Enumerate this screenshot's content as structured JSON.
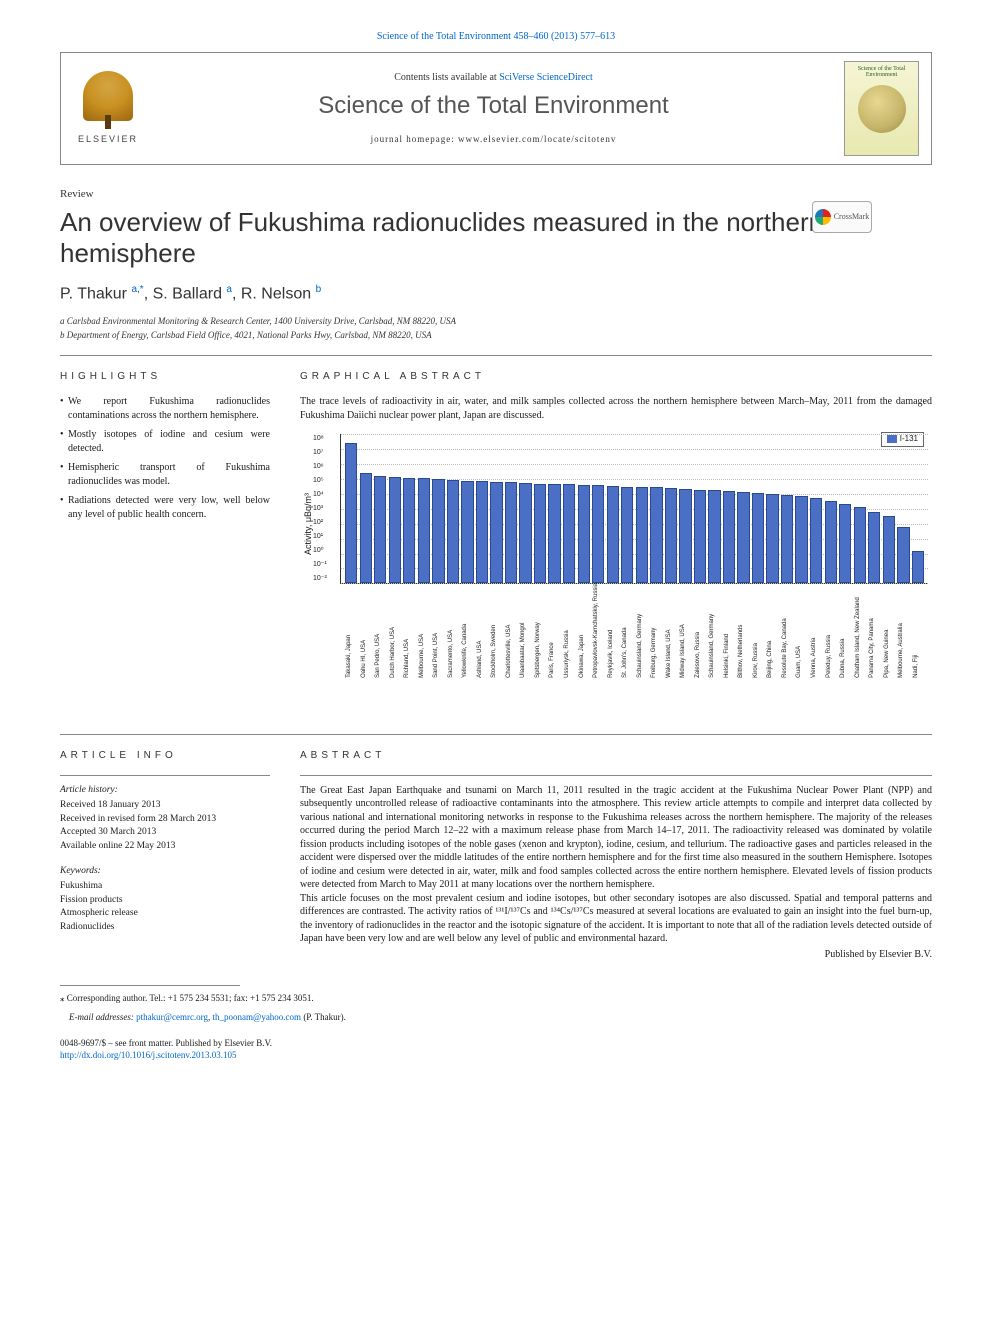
{
  "header": {
    "top_ref": "Science of the Total Environment 458–460 (2013) 577–613",
    "contents_line_prefix": "Contents lists available at ",
    "contents_line_link": "SciVerse ScienceDirect",
    "journal_name": "Science of the Total Environment",
    "homepage_prefix": "journal homepage: ",
    "homepage_url": "www.elsevier.com/locate/scitotenv",
    "elsevier_label": "ELSEVIER",
    "cover_title": "Science of the Total Environment"
  },
  "article": {
    "type": "Review",
    "title": "An overview of Fukushima radionuclides measured in the northern hemisphere",
    "crossmark": "CrossMark",
    "authors_html": "P. Thakur <sup>a,</sup><sup>*</sup>, S. Ballard <sup>a</sup>, R. Nelson <sup>b</sup>",
    "affiliations": [
      "a  Carlsbad Environmental Monitoring & Research Center, 1400 University Drive, Carlsbad, NM 88220, USA",
      "b  Department of Energy, Carlsbad Field Office, 4021, National Parks Hwy, Carlsbad, NM 88220, USA"
    ]
  },
  "highlights": {
    "heading": "HIGHLIGHTS",
    "items": [
      "We report Fukushima radionuclides contaminations across the northern hemisphere.",
      "Mostly isotopes of iodine and cesium were detected.",
      "Hemispheric transport of Fukushima radionuclides was model.",
      "Radiations detected were very low, well below any level of public health concern."
    ]
  },
  "graphical_abstract": {
    "heading": "GRAPHICAL ABSTRACT",
    "caption": "The trace levels of radioactivity in air, water, and milk samples collected across the northern hemisphere between March–May, 2011 from the damaged Fukushima Daiichi nuclear power plant, Japan are discussed.",
    "chart": {
      "type": "bar",
      "ylabel": "Activity, μBq/m³",
      "legend_label": "I-131",
      "yscale": "log",
      "ylim": [
        0.01,
        100000000.0
      ],
      "ytick_labels": [
        "10⁸",
        "10⁷",
        "10⁶",
        "10⁵",
        "10⁴",
        "10³",
        "10²",
        "10¹",
        "10⁰",
        "10⁻¹",
        "10⁻²"
      ],
      "bar_color": "#4a6fc4",
      "bar_border": "#2a4a90",
      "grid_color": "#bbbbbb",
      "background": "#ffffff",
      "categories": [
        "Takasaki, Japan",
        "Oahu HI, USA",
        "San Pedro, USA",
        "Dutch Harbor, USA",
        "Richland, USA",
        "Melbourne, USA",
        "Sand Point, USA",
        "Sacramento, USA",
        "Yellowknife, Canada",
        "Ashland, USA",
        "Stockholm, Sweden",
        "Charlottesville, USA",
        "Ulaanbaatar, Mongol",
        "Spitsbergen, Norway",
        "Paris, France",
        "Ussuriysk, Russia",
        "Okinawa, Japan",
        "Petropavlovsk-Kamchatskiy, Russia",
        "Reykjavik, Iceland",
        "St. John's, Canada",
        "Schauinsland, Germany",
        "Freiburg, Germany",
        "Wake Island, USA",
        "Midway Island, USA",
        "Zalesovo, Russia",
        "Schauinsland, Germany",
        "Helsinki, Finland",
        "Bilthov, Netherlands",
        "Kirov, Russia",
        "Beijing, China",
        "Resolute Bay, Canada",
        "Guam, USA",
        "Vienna, Austria",
        "Peleduy, Russia",
        "Dubna, Russia",
        "Chatham Island, New Zealand",
        "Panama City, Panama",
        "Pipa, New Guinea",
        "Melbourne, Australia",
        "Nadi, Fiji"
      ],
      "values_log": [
        7.4,
        5.4,
        5.2,
        5.15,
        5.1,
        5.05,
        5.0,
        4.95,
        4.9,
        4.85,
        4.8,
        4.78,
        4.75,
        4.7,
        4.68,
        4.65,
        4.6,
        4.58,
        4.55,
        4.5,
        4.48,
        4.45,
        4.4,
        4.35,
        4.3,
        4.25,
        4.2,
        4.15,
        4.05,
        4.0,
        3.95,
        3.85,
        3.7,
        3.5,
        3.3,
        3.1,
        2.8,
        2.5,
        1.8,
        0.2
      ]
    }
  },
  "article_info": {
    "heading": "ARTICLE INFO",
    "history_head": "Article history:",
    "history": [
      "Received 18 January 2013",
      "Received in revised form 28 March 2013",
      "Accepted 30 March 2013",
      "Available online 22 May 2013"
    ],
    "keywords_head": "Keywords:",
    "keywords": [
      "Fukushima",
      "Fission products",
      "Atmospheric release",
      "Radionuclides"
    ]
  },
  "abstract": {
    "heading": "ABSTRACT",
    "para1": "The Great East Japan Earthquake and tsunami on March 11, 2011 resulted in the tragic accident at the Fukushima Nuclear Power Plant (NPP) and subsequently uncontrolled release of radioactive contaminants into the atmosphere. This review article attempts to compile and interpret data collected by various national and international monitoring networks in response to the Fukushima releases across the northern hemisphere. The majority of the releases occurred during the period March 12–22 with a maximum release phase from March 14–17, 2011. The radioactivity released was dominated by volatile fission products including isotopes of the noble gases (xenon and krypton), iodine, cesium, and tellurium. The radioactive gases and particles released in the accident were dispersed over the middle latitudes of the entire northern hemisphere and for the first time also measured in the southern Hemisphere. Isotopes of iodine and cesium were detected in air, water, milk and food samples collected across the entire northern hemisphere. Elevated levels of fission products were detected from March to May 2011 at many locations over the northern hemisphere.",
    "para2_pre": "This article focuses on the most prevalent cesium and iodine isotopes, but other secondary isotopes are also discussed. Spatial and temporal patterns and differences are contrasted. The activity ratios of ",
    "ratio1": "¹³¹I/¹³⁷Cs",
    "and": " and ",
    "ratio2": "¹³⁴Cs/¹³⁷Cs",
    "para2_post": " measured at several locations are evaluated to gain an insight into the fuel burn-up, the inventory of radionuclides in the reactor and the isotopic signature of the accident. It is important to note that all of the radiation levels detected outside of Japan have been very low and are well below any level of public and environmental hazard.",
    "publisher": "Published by Elsevier B.V."
  },
  "footer": {
    "corr_line": "⁎  Corresponding author. Tel.: +1 575 234 5531; fax: +1 575 234 3051.",
    "email_prefix": "E-mail addresses: ",
    "email1": "pthakur@cemrc.org",
    "email_sep": ", ",
    "email2": "th_poonam@yahoo.com",
    "email_suffix": " (P. Thakur).",
    "issn": "0048-9697/$ – see front matter. Published by Elsevier B.V.",
    "doi": "http://dx.doi.org/10.1016/j.scitotenv.2013.03.105"
  }
}
